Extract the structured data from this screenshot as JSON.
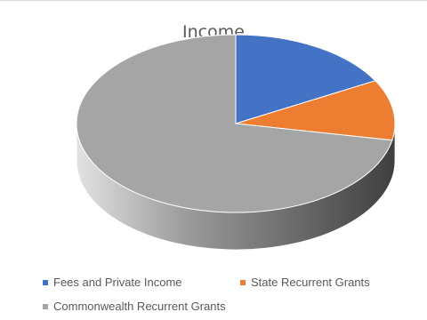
{
  "chart_data": {
    "type": "pie",
    "title": "Income",
    "categories": [
      "Fees and Private Income",
      "State Recurrent Grants",
      "Commonwealth Recurrent Grants"
    ],
    "values": [
      17,
      11,
      72
    ],
    "colors": [
      "#4472C4",
      "#ED7D31",
      "#A5A5A5"
    ],
    "style": "3d",
    "legend_position": "bottom"
  }
}
